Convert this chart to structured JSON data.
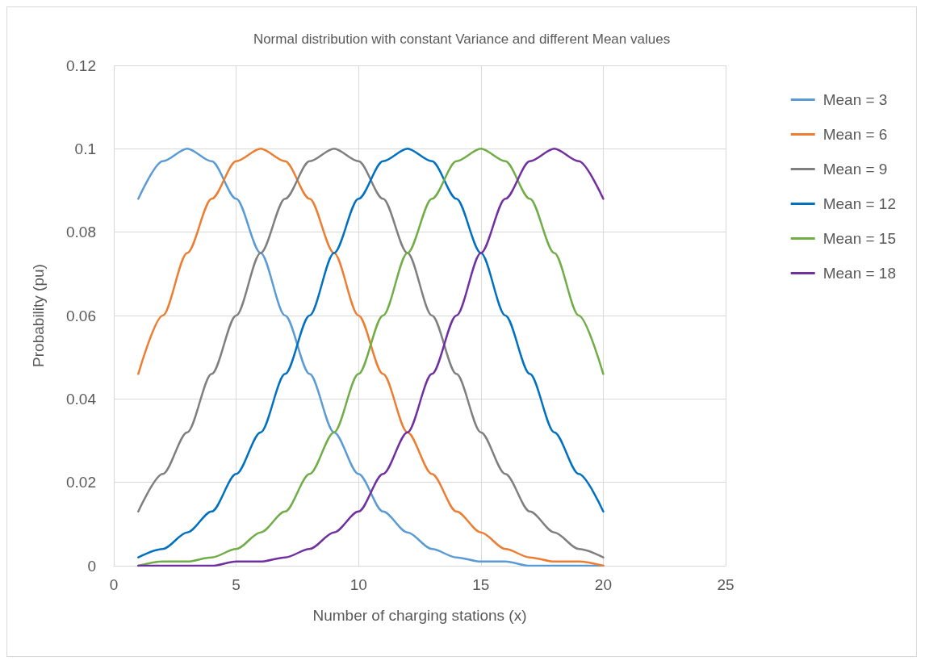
{
  "chart_data": {
    "type": "line",
    "title": "Normal distribution with constant Variance and different Mean values",
    "xlabel": "Number of charging stations (x)",
    "ylabel": "Probability (pu)",
    "x": [
      1,
      2,
      3,
      4,
      5,
      6,
      7,
      8,
      9,
      10,
      11,
      12,
      13,
      14,
      15,
      16,
      17,
      18,
      19,
      20
    ],
    "series": [
      {
        "name": "Mean = 3",
        "color": "#5b9bd5",
        "values": [
          0.088,
          0.097,
          0.1,
          0.097,
          0.088,
          0.075,
          0.06,
          0.046,
          0.032,
          0.022,
          0.013,
          0.008,
          0.004,
          0.002,
          0.001,
          0.001,
          0,
          0,
          0,
          0
        ]
      },
      {
        "name": "Mean = 6",
        "color": "#ed7d31",
        "values": [
          0.046,
          0.06,
          0.075,
          0.088,
          0.097,
          0.1,
          0.097,
          0.088,
          0.075,
          0.06,
          0.046,
          0.032,
          0.022,
          0.013,
          0.008,
          0.004,
          0.002,
          0.001,
          0.001,
          0
        ]
      },
      {
        "name": "Mean = 9",
        "color": "#7f7f7f",
        "values": [
          0.013,
          0.022,
          0.032,
          0.046,
          0.06,
          0.075,
          0.088,
          0.097,
          0.1,
          0.097,
          0.088,
          0.075,
          0.06,
          0.046,
          0.032,
          0.022,
          0.013,
          0.008,
          0.004,
          0.002
        ]
      },
      {
        "name": "Mean = 12",
        "color": "#0070c0",
        "values": [
          0.002,
          0.004,
          0.008,
          0.013,
          0.022,
          0.032,
          0.046,
          0.06,
          0.075,
          0.088,
          0.097,
          0.1,
          0.097,
          0.088,
          0.075,
          0.06,
          0.046,
          0.032,
          0.022,
          0.013
        ]
      },
      {
        "name": "Mean = 15",
        "color": "#70ad47",
        "values": [
          0,
          0.001,
          0.001,
          0.002,
          0.004,
          0.008,
          0.013,
          0.022,
          0.032,
          0.046,
          0.06,
          0.075,
          0.088,
          0.097,
          0.1,
          0.097,
          0.088,
          0.075,
          0.06,
          0.046
        ]
      },
      {
        "name": "Mean = 18",
        "color": "#7030a0",
        "values": [
          0,
          0,
          0,
          0,
          0.001,
          0.001,
          0.002,
          0.004,
          0.008,
          0.013,
          0.022,
          0.032,
          0.046,
          0.06,
          0.075,
          0.088,
          0.097,
          0.1,
          0.097,
          0.088
        ]
      }
    ],
    "xlim": [
      0,
      25
    ],
    "xticks": [
      0,
      5,
      10,
      15,
      20,
      25
    ],
    "ylim": [
      0,
      0.12
    ],
    "yticks": [
      0,
      0.02,
      0.04,
      0.06,
      0.08,
      0.1,
      0.12
    ],
    "grid": true,
    "legend": "right",
    "marker": "none",
    "line_style": "solid"
  }
}
